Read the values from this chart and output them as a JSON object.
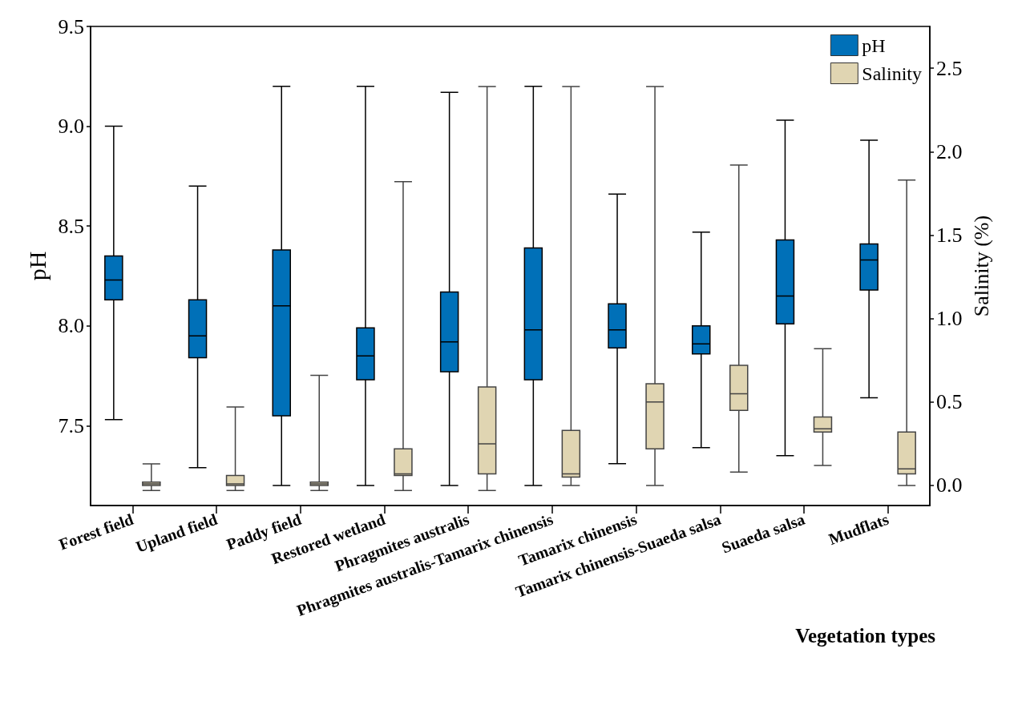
{
  "chart_data": {
    "type": "box",
    "xlabel": "Vegetation types",
    "ylabel": "pH",
    "y2label": "Salinity (%)",
    "categories": [
      "Forest field",
      "Upland field",
      "Paddy field",
      "Restored wetland",
      "Phragmites australis",
      "Phragmites australis-Tamarix chinensis",
      "Tamarix chinensis",
      "Tamarix chinensis-Suaeda salsa",
      "Suaeda salsa",
      "Mudflats"
    ],
    "ylim": [
      7.1,
      9.5
    ],
    "yticks": [
      {
        "value": 7.5,
        "label": "7.5"
      },
      {
        "value": 8,
        "label": "8.0"
      },
      {
        "value": 8.5,
        "label": "8.5"
      },
      {
        "value": 9,
        "label": "9.0"
      },
      {
        "value": 9.5,
        "label": "9.5"
      }
    ],
    "y2lim": [
      -0.12,
      2.75
    ],
    "y2ticks": [
      {
        "value": 0,
        "label": "0.0"
      },
      {
        "value": 0.5,
        "label": "0.5"
      },
      {
        "value": 1,
        "label": "1.0"
      },
      {
        "value": 1.5,
        "label": "1.5"
      },
      {
        "value": 2,
        "label": "2.0"
      },
      {
        "value": 2.5,
        "label": "2.5"
      }
    ],
    "legend": "top right",
    "grid": false,
    "series": [
      {
        "name": "pH",
        "color": "#0070b8",
        "boxes": [
          {
            "low": 7.53,
            "q1": 8.13,
            "median": 8.23,
            "q3": 8.35,
            "high": 9.0
          },
          {
            "low": 7.29,
            "q1": 7.84,
            "median": 7.95,
            "q3": 8.13,
            "high": 8.7
          },
          {
            "low": 7.2,
            "q1": 7.55,
            "median": 8.1,
            "q3": 8.38,
            "high": 9.2
          },
          {
            "low": 7.2,
            "q1": 7.73,
            "median": 7.85,
            "q3": 7.99,
            "high": 9.2
          },
          {
            "low": 7.2,
            "q1": 7.77,
            "median": 7.92,
            "q3": 8.17,
            "high": 9.17
          },
          {
            "low": 7.2,
            "q1": 7.73,
            "median": 7.98,
            "q3": 8.39,
            "high": 9.2
          },
          {
            "low": 7.31,
            "q1": 7.89,
            "median": 7.98,
            "q3": 8.11,
            "high": 8.66
          },
          {
            "low": 7.39,
            "q1": 7.86,
            "median": 7.91,
            "q3": 8.0,
            "high": 8.47
          },
          {
            "low": 7.35,
            "q1": 8.01,
            "median": 8.15,
            "q3": 8.43,
            "high": 9.03
          },
          {
            "low": 7.64,
            "q1": 8.18,
            "median": 8.33,
            "q3": 8.41,
            "high": 8.93
          }
        ]
      },
      {
        "name": "Salinity",
        "color": "#e0d5b2",
        "axis": "y2",
        "boxes": [
          {
            "low": -0.03,
            "q1": 0.0,
            "median": 0.01,
            "q3": 0.02,
            "high": 0.13
          },
          {
            "low": -0.03,
            "q1": 0.0,
            "median": 0.01,
            "q3": 0.06,
            "high": 0.47
          },
          {
            "low": -0.03,
            "q1": 0.0,
            "median": 0.01,
            "q3": 0.02,
            "high": 0.66
          },
          {
            "low": -0.03,
            "q1": 0.06,
            "median": 0.07,
            "q3": 0.22,
            "high": 1.82
          },
          {
            "low": -0.03,
            "q1": 0.07,
            "median": 0.25,
            "q3": 0.59,
            "high": 2.39
          },
          {
            "low": 0.0,
            "q1": 0.05,
            "median": 0.07,
            "q3": 0.33,
            "high": 2.39
          },
          {
            "low": 0.0,
            "q1": 0.22,
            "median": 0.5,
            "q3": 0.61,
            "high": 2.39
          },
          {
            "low": 0.08,
            "q1": 0.45,
            "median": 0.55,
            "q3": 0.72,
            "high": 1.92
          },
          {
            "low": 0.12,
            "q1": 0.32,
            "median": 0.34,
            "q3": 0.41,
            "high": 0.82
          },
          {
            "low": 0.0,
            "q1": 0.07,
            "median": 0.1,
            "q3": 0.32,
            "high": 1.83
          }
        ]
      }
    ]
  }
}
